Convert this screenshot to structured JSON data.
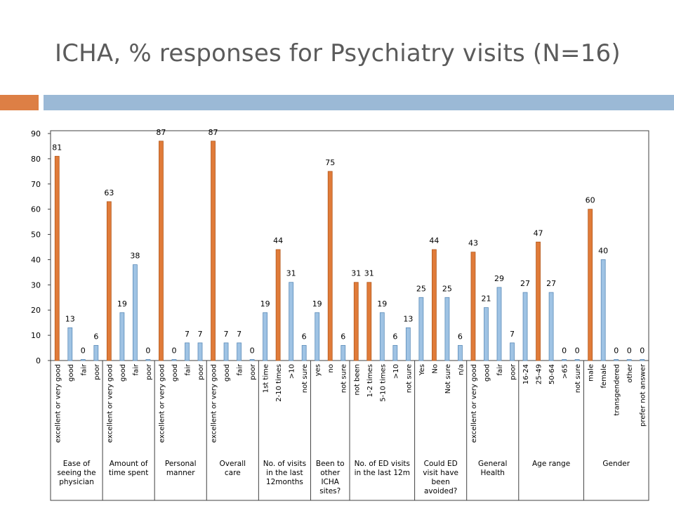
{
  "title": "ICHA, % responses for Psychiatry visits (N=16)",
  "colors": {
    "title": "#5b5b5b",
    "accent_orange": "#dd7f45",
    "accent_blue": "#9bb9d6",
    "bar_orange": "#e07b39",
    "bar_blue": "#9fc3e4"
  },
  "chart_data": {
    "type": "bar",
    "ylim": [
      0,
      90
    ],
    "yticks": [
      0,
      10,
      20,
      30,
      40,
      50,
      60,
      70,
      80,
      90
    ],
    "grid": false,
    "groups": [
      {
        "label": "Ease of seeing the physician",
        "label_lines": [
          "Ease of",
          "seeing the",
          "physician"
        ],
        "bars": [
          {
            "category": "excellent or very good",
            "value": 81,
            "label": "81",
            "color": "orange"
          },
          {
            "category": "good",
            "value": 13,
            "label": "13",
            "color": "blue"
          },
          {
            "category": "fair",
            "value": 0,
            "label": "0",
            "color": "blue"
          },
          {
            "category": "poor",
            "value": 6,
            "label": "6",
            "color": "blue"
          }
        ]
      },
      {
        "label": "Amount of time spent",
        "label_lines": [
          "Amount of",
          "time spent"
        ],
        "bars": [
          {
            "category": "excellent or very good",
            "value": 63,
            "label": "63",
            "color": "orange"
          },
          {
            "category": "good",
            "value": 19,
            "label": "19",
            "color": "blue"
          },
          {
            "category": "fair",
            "value": 38,
            "label": "38",
            "color": "blue"
          },
          {
            "category": "poor",
            "value": 0,
            "label": "0",
            "color": "blue"
          }
        ]
      },
      {
        "label": "Personal manner",
        "label_lines": [
          "Personal",
          "manner"
        ],
        "bars": [
          {
            "category": "excellent or very good",
            "value": 87,
            "label": "87",
            "color": "orange"
          },
          {
            "category": "good",
            "value": 0,
            "label": "0",
            "color": "blue"
          },
          {
            "category": "fair",
            "value": 7,
            "label": "7",
            "color": "blue"
          },
          {
            "category": "poor",
            "value": 7,
            "label": "7",
            "color": "blue"
          }
        ]
      },
      {
        "label": "Overall care",
        "label_lines": [
          "Overall",
          "care"
        ],
        "bars": [
          {
            "category": "excellent or very good",
            "value": 87,
            "label": "87",
            "color": "orange"
          },
          {
            "category": "good",
            "value": 7,
            "label": "7",
            "color": "blue"
          },
          {
            "category": "fair",
            "value": 7,
            "label": "7",
            "color": "blue"
          },
          {
            "category": "poor",
            "value": 0,
            "label": "0",
            "color": "blue"
          }
        ]
      },
      {
        "label": "No. of visits in the last 12months",
        "label_lines": [
          "No. of visits",
          "in the last",
          "12months"
        ],
        "bars": [
          {
            "category": "1st time",
            "value": 19,
            "label": "19",
            "color": "blue"
          },
          {
            "category": "2-10 times",
            "value": 44,
            "label": "44",
            "color": "orange"
          },
          {
            "category": ">10",
            "value": 31,
            "label": "31",
            "color": "blue"
          },
          {
            "category": "not sure",
            "value": 6,
            "label": "6",
            "color": "blue"
          }
        ]
      },
      {
        "label": "Been to other ICHA sites?",
        "label_lines": [
          "Been to",
          "other",
          "ICHA",
          "sites?"
        ],
        "bars": [
          {
            "category": "yes",
            "value": 19,
            "label": "19",
            "color": "blue"
          },
          {
            "category": "no",
            "value": 75,
            "label": "75",
            "color": "orange"
          },
          {
            "category": "not sure",
            "value": 6,
            "label": "6",
            "color": "blue"
          }
        ]
      },
      {
        "label": "No. of ED visits in the last 12m",
        "label_lines": [
          "No. of ED visits",
          "in the last 12m"
        ],
        "bars": [
          {
            "category": "not been",
            "value": 31,
            "label": "31",
            "color": "orange"
          },
          {
            "category": "1-2 times",
            "value": 31,
            "label": "31",
            "color": "orange"
          },
          {
            "category": "5-10 times",
            "value": 19,
            "label": "19",
            "color": "blue"
          },
          {
            "category": ">10",
            "value": 6,
            "label": "6",
            "color": "blue"
          },
          {
            "category": "not sure",
            "value": 13,
            "label": "13",
            "color": "blue"
          }
        ]
      },
      {
        "label": "Could ED visit have been avoided?",
        "label_lines": [
          "Could ED",
          "visit have",
          "been",
          "avoided?"
        ],
        "bars": [
          {
            "category": "Yes",
            "value": 25,
            "label": "25",
            "color": "blue"
          },
          {
            "category": "No",
            "value": 44,
            "label": "44",
            "color": "orange"
          },
          {
            "category": "Not sure",
            "value": 25,
            "label": "25",
            "color": "blue"
          },
          {
            "category": "n/a",
            "value": 6,
            "label": "6",
            "color": "blue"
          }
        ]
      },
      {
        "label": "General Health",
        "label_lines": [
          "General",
          "Health"
        ],
        "bars": [
          {
            "category": "excellent or very good",
            "value": 43,
            "label": "43",
            "color": "orange"
          },
          {
            "category": "good",
            "value": 21,
            "label": "21",
            "color": "blue"
          },
          {
            "category": "fair",
            "value": 29,
            "label": "29",
            "color": "blue"
          },
          {
            "category": "poor",
            "value": 7,
            "label": "7",
            "color": "blue"
          }
        ]
      },
      {
        "label": "Age range",
        "label_lines": [
          "Age range"
        ],
        "bars": [
          {
            "category": "16-24",
            "value": 27,
            "label": "27",
            "color": "blue"
          },
          {
            "category": "25-49",
            "value": 47,
            "label": "47",
            "color": "orange"
          },
          {
            "category": "50-64",
            "value": 27,
            "label": "27",
            "color": "blue"
          },
          {
            "category": ">65",
            "value": 0,
            "label": "0",
            "color": "blue"
          },
          {
            "category": "not sure",
            "value": 0,
            "label": "0",
            "color": "blue"
          }
        ]
      },
      {
        "label": "Gender",
        "label_lines": [
          "Gender"
        ],
        "bars": [
          {
            "category": "male",
            "value": 60,
            "label": "60",
            "color": "orange"
          },
          {
            "category": "female",
            "value": 40,
            "label": "40",
            "color": "blue"
          },
          {
            "category": "transgendered",
            "value": 0,
            "label": "0",
            "color": "blue"
          },
          {
            "category": "other",
            "value": 0,
            "label": "0",
            "color": "blue"
          },
          {
            "category": "prefer not answer",
            "value": 0,
            "label": "0",
            "color": "blue"
          }
        ]
      }
    ]
  }
}
